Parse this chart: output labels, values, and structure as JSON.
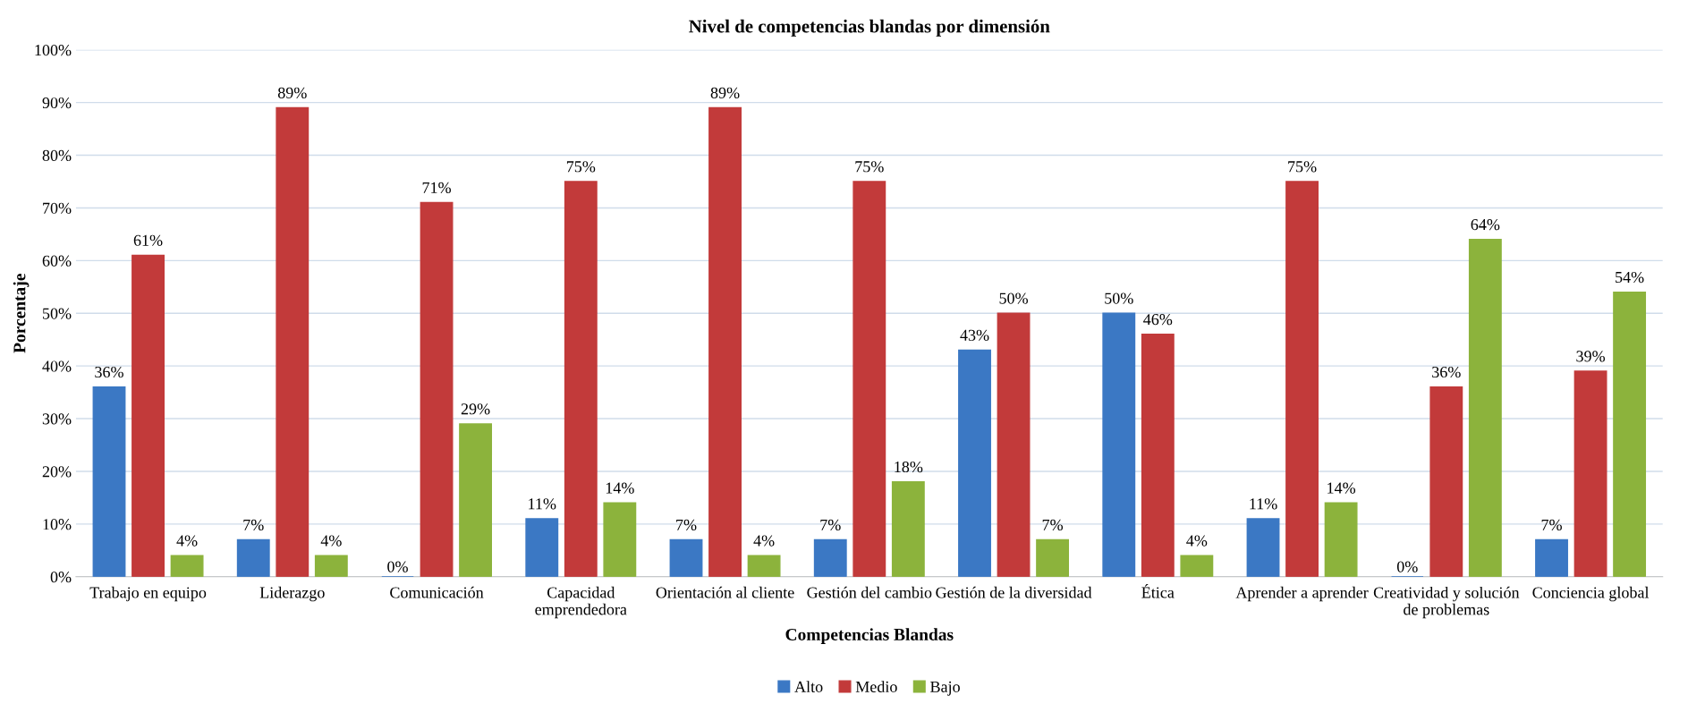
{
  "chart_data": {
    "type": "bar",
    "title": "Nivel de competencias blandas por dimensión",
    "xlabel": "Competencias Blandas",
    "ylabel": "Porcentaje",
    "categories": [
      "Trabajo en equipo",
      "Liderazgo",
      "Comunicación",
      "Capacidad\nemprendedora",
      "Orientación al cliente",
      "Gestión del cambio",
      "Gestión de la diversidad",
      "Ética",
      "Aprender a aprender",
      "Creatividad y solución\nde problemas",
      "Conciencia global"
    ],
    "series": [
      {
        "name": "Alto",
        "color": "#3b78c4",
        "values": [
          36,
          7,
          0,
          11,
          7,
          7,
          43,
          50,
          11,
          0,
          7
        ],
        "value_labels": [
          "36%",
          "7%",
          "0%",
          "11%",
          "7%",
          "7%",
          "43%",
          "50%",
          "11%",
          "0%",
          "7%"
        ]
      },
      {
        "name": "Medio",
        "color": "#c23a3a",
        "values": [
          61,
          89,
          71,
          75,
          89,
          75,
          50,
          46,
          75,
          36,
          39
        ],
        "value_labels": [
          "61%",
          "89%",
          "71%",
          "75%",
          "89%",
          "75%",
          "50%",
          "46%",
          "75%",
          "36%",
          "39%"
        ]
      },
      {
        "name": "Bajo",
        "color": "#8cb33c",
        "values": [
          4,
          4,
          29,
          14,
          4,
          18,
          7,
          4,
          14,
          64,
          54
        ],
        "value_labels": [
          "4%",
          "4%",
          "29%",
          "14%",
          "4%",
          "18%",
          "7%",
          "4%",
          "14%",
          "64%",
          "54%"
        ]
      }
    ],
    "ylim": [
      0,
      100
    ],
    "yticks": [
      {
        "value": 0,
        "label": "0%"
      },
      {
        "value": 10,
        "label": "10%"
      },
      {
        "value": 20,
        "label": "20%"
      },
      {
        "value": 30,
        "label": "30%"
      },
      {
        "value": 40,
        "label": "40%"
      },
      {
        "value": 50,
        "label": "50%"
      },
      {
        "value": 60,
        "label": "60%"
      },
      {
        "value": 70,
        "label": "70%"
      },
      {
        "value": 80,
        "label": "80%"
      },
      {
        "value": 90,
        "label": "90%"
      },
      {
        "value": 100,
        "label": "100%"
      }
    ],
    "grid": "y",
    "legend": "bottom"
  }
}
